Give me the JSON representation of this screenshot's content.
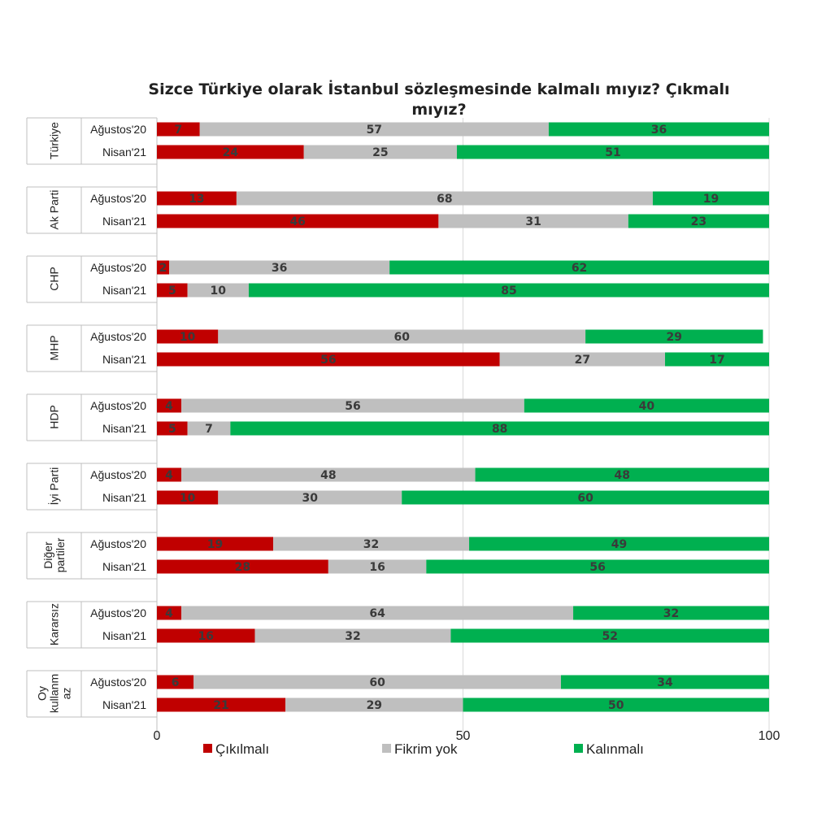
{
  "chart_data": {
    "type": "bar",
    "orientation": "horizontal",
    "stacked": true,
    "title": "Sizce Türkiye olarak İstanbul sözleşmesinde kalmalı mıyız? Çıkmalı mıyız?",
    "xlim": [
      0,
      100
    ],
    "xticks": [
      "0",
      "50",
      "100"
    ],
    "grid": true,
    "legend_position": "bottom",
    "series": [
      {
        "name": "Çıkılmalı",
        "color": "#c00000"
      },
      {
        "name": "Fikrim yok",
        "color": "#bfbfbf"
      },
      {
        "name": "Kalınmalı",
        "color": "#00b050"
      }
    ],
    "groups": [
      {
        "label": [
          "Türkiye"
        ],
        "rows": [
          {
            "period": "Ağustos'20",
            "values": [
              7,
              57,
              36
            ]
          },
          {
            "period": "Nisan'21",
            "values": [
              24,
              25,
              51
            ]
          }
        ]
      },
      {
        "label": [
          "Ak Parti"
        ],
        "rows": [
          {
            "period": "Ağustos'20",
            "values": [
              13,
              68,
              19
            ]
          },
          {
            "period": "Nisan'21",
            "values": [
              46,
              31,
              23
            ]
          }
        ]
      },
      {
        "label": [
          "CHP"
        ],
        "rows": [
          {
            "period": "Ağustos'20",
            "values": [
              2,
              36,
              62
            ]
          },
          {
            "period": "Nisan'21",
            "values": [
              5,
              10,
              85
            ]
          }
        ]
      },
      {
        "label": [
          "MHP"
        ],
        "rows": [
          {
            "period": "Ağustos'20",
            "values": [
              10,
              60,
              29
            ]
          },
          {
            "period": "Nisan'21",
            "values": [
              56,
              27,
              17
            ]
          }
        ]
      },
      {
        "label": [
          "HDP"
        ],
        "rows": [
          {
            "period": "Ağustos'20",
            "values": [
              4,
              56,
              40
            ]
          },
          {
            "period": "Nisan'21",
            "values": [
              5,
              7,
              88
            ]
          }
        ]
      },
      {
        "label": [
          "İyi Parti"
        ],
        "rows": [
          {
            "period": "Ağustos'20",
            "values": [
              4,
              48,
              48
            ]
          },
          {
            "period": "Nisan'21",
            "values": [
              10,
              30,
              60
            ]
          }
        ]
      },
      {
        "label": [
          "Diğer",
          "partiler"
        ],
        "rows": [
          {
            "period": "Ağustos'20",
            "values": [
              19,
              32,
              49
            ]
          },
          {
            "period": "Nisan'21",
            "values": [
              28,
              16,
              56
            ]
          }
        ]
      },
      {
        "label": [
          "Kararsız"
        ],
        "rows": [
          {
            "period": "Ağustos'20",
            "values": [
              4,
              64,
              32
            ]
          },
          {
            "period": "Nisan'21",
            "values": [
              16,
              32,
              52
            ]
          }
        ]
      },
      {
        "label": [
          "Oy",
          "kullanm",
          "az"
        ],
        "rows": [
          {
            "period": "Ağustos'20",
            "values": [
              6,
              60,
              34
            ]
          },
          {
            "period": "Nisan'21",
            "values": [
              21,
              29,
              50
            ]
          }
        ]
      }
    ]
  }
}
